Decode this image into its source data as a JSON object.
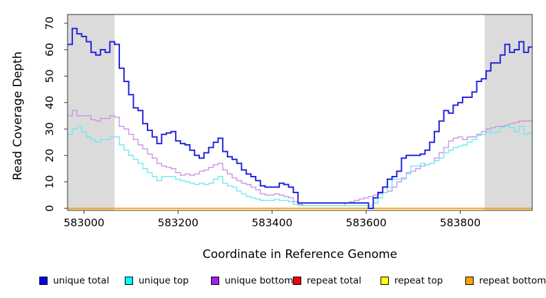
{
  "figure": {
    "xlabel": "Coordinate in Reference Genome",
    "ylabel": "Read Coverage Depth"
  },
  "legend": {
    "items": [
      {
        "label": "unique total",
        "color": "#0000EE"
      },
      {
        "label": "unique top",
        "color": "#00FFFF"
      },
      {
        "label": "unique bottom",
        "color": "#A020F0"
      },
      {
        "label": "repeat total",
        "color": "#EE0000"
      },
      {
        "label": "repeat top",
        "color": "#FFFF00"
      },
      {
        "label": "repeat bottom",
        "color": "#FFA500"
      }
    ]
  },
  "chart_data": {
    "type": "line",
    "step": true,
    "title": "",
    "xlabel": "Coordinate in Reference Genome",
    "ylabel": "Read Coverage Depth",
    "xlim": [
      582965,
      583953
    ],
    "ylim": [
      0,
      70
    ],
    "x_ticks": [
      583000,
      583200,
      583400,
      583600,
      583800
    ],
    "y_ticks": [
      0,
      10,
      20,
      30,
      40,
      50,
      60,
      70
    ],
    "grid": false,
    "legend_position": "bottom",
    "shaded_regions": {
      "color": "#DBDBDB",
      "ranges": [
        [
          582965,
          583065
        ],
        [
          583852,
          583953
        ]
      ]
    },
    "series": [
      {
        "name": "repeat total",
        "line_color": "#EE0000",
        "line_width": 1.6,
        "constant": 0
      },
      {
        "name": "repeat top",
        "line_color": "#FFFF00",
        "line_width": 1.6,
        "constant": 0
      },
      {
        "name": "repeat bottom",
        "line_color": "#FFA500",
        "line_width": 1.6,
        "constant": 0
      },
      {
        "name": "unique bottom",
        "line_color": "#CD92E2",
        "line_width": 1.4,
        "x_start": 582965,
        "x_step": 10,
        "values": [
          35,
          37,
          35,
          35,
          35,
          33.5,
          33,
          34,
          34,
          35,
          34.5,
          31,
          30,
          28,
          26,
          24,
          22.5,
          20.5,
          19,
          17,
          16,
          15.5,
          15,
          13.5,
          12.5,
          13,
          12.5,
          13,
          14,
          14.5,
          15.5,
          16.5,
          17,
          14.5,
          13,
          11.5,
          10.5,
          9.5,
          9,
          8,
          7,
          5.5,
          5,
          5,
          5.5,
          5,
          4.5,
          4,
          2.5,
          1.5,
          1,
          1,
          1,
          1,
          1,
          1,
          1,
          1,
          1,
          2,
          2.5,
          3,
          3.5,
          4,
          4.5,
          5,
          5.5,
          6,
          6.5,
          8,
          10,
          11.5,
          13.5,
          14,
          15,
          16,
          16.5,
          17,
          19,
          21,
          23,
          25.5,
          26.5,
          27,
          26,
          27,
          27,
          28,
          29,
          30,
          30.5,
          31,
          31,
          31.5,
          32,
          32.5,
          33,
          33,
          33
        ]
      },
      {
        "name": "unique top",
        "line_color": "#70E9EE",
        "line_width": 1.4,
        "x_start": 582965,
        "x_step": 10,
        "values": [
          28,
          30,
          31,
          29,
          27,
          26,
          25,
          26,
          26,
          27,
          27,
          24,
          22,
          20,
          18.5,
          17,
          15,
          13.5,
          12,
          10.5,
          12,
          12,
          12,
          11,
          10.5,
          10,
          9.5,
          9,
          9.5,
          9,
          9.5,
          11,
          12,
          9.5,
          8.5,
          8,
          6.5,
          5.5,
          4.5,
          4,
          3.5,
          3,
          3,
          3,
          3.5,
          3,
          3,
          2.5,
          1.5,
          1,
          1,
          1,
          1,
          1,
          1,
          1,
          1,
          1,
          1,
          1,
          1,
          1,
          1,
          1,
          1,
          2,
          4,
          6,
          8,
          11,
          11,
          11,
          13,
          16,
          16,
          17,
          16.5,
          17,
          18,
          19,
          21,
          22,
          23,
          23.5,
          24,
          25,
          26,
          27.5,
          28,
          29,
          28.5,
          29,
          30.5,
          31,
          30.5,
          29,
          31,
          28,
          28.5
        ]
      },
      {
        "name": "unique total",
        "line_color": "#2323DC",
        "line_width": 2,
        "x_start": 582965,
        "x_step": 10,
        "values": [
          62,
          68,
          66,
          65,
          63,
          59,
          58,
          60,
          59,
          63,
          62,
          53,
          48,
          43,
          38,
          37,
          32,
          29.5,
          27,
          24.5,
          28,
          28.5,
          29,
          25.5,
          24.5,
          24,
          22,
          20,
          19,
          21,
          23,
          25,
          26.5,
          21.5,
          19.5,
          18.5,
          17,
          14.5,
          13,
          12,
          10.5,
          8.5,
          8,
          8,
          8,
          9.5,
          9,
          8,
          6,
          2,
          2,
          2,
          2,
          2,
          2,
          2,
          2,
          2,
          2,
          2,
          2,
          2,
          2,
          2,
          0,
          4,
          6,
          8,
          11,
          12,
          14,
          19,
          20,
          20,
          20,
          20.5,
          22,
          25,
          29,
          33,
          37,
          36,
          39,
          40,
          42,
          42,
          44,
          48,
          49,
          52,
          55,
          55,
          58,
          62,
          59,
          60,
          63,
          59,
          61
        ]
      }
    ]
  }
}
